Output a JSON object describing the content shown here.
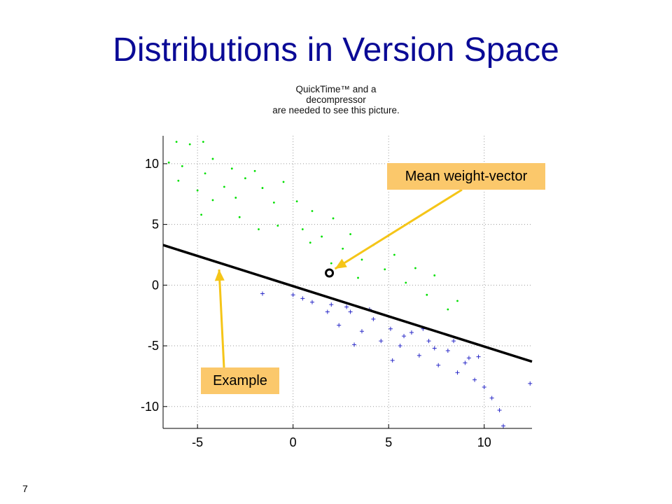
{
  "slide": {
    "title": "Distributions in Version Space",
    "quicktime_placeholder_lines": [
      "QuickTime™ and a",
      "decompressor",
      "are needed to see this picture."
    ],
    "page_number": "7"
  },
  "colors": {
    "title": "#0a0a96",
    "positive_points": "#00e000",
    "negative_points": "#2a2ac8",
    "decision_line": "#000000",
    "callout_fill": "#fbc86b",
    "arrow": "#f5c518"
  },
  "chart_data": {
    "type": "scatter",
    "title": "",
    "xlabel": "",
    "ylabel": "",
    "xlim": [
      -6.8,
      12.5
    ],
    "ylim": [
      -11.8,
      12.3
    ],
    "xticks": [
      -5,
      0,
      5,
      10
    ],
    "yticks": [
      10,
      5,
      0,
      -5,
      -10
    ],
    "grid": true,
    "series": [
      {
        "marker": "dot",
        "color": "#00e000",
        "points": [
          [
            -6.5,
            10.1
          ],
          [
            -6.1,
            11.8
          ],
          [
            -5.4,
            11.6
          ],
          [
            -5.8,
            9.8
          ],
          [
            -4.7,
            11.8
          ],
          [
            -4.6,
            9.2
          ],
          [
            -5.0,
            7.8
          ],
          [
            -6.0,
            8.6
          ],
          [
            -4.2,
            10.4
          ],
          [
            -4.2,
            7.0
          ],
          [
            -3.2,
            9.6
          ],
          [
            -3.6,
            8.1
          ],
          [
            -3.0,
            7.2
          ],
          [
            -2.5,
            8.8
          ],
          [
            -4.8,
            5.8
          ],
          [
            -2.0,
            9.4
          ],
          [
            -1.6,
            8.0
          ],
          [
            -2.8,
            5.6
          ],
          [
            -1.0,
            6.8
          ],
          [
            -0.5,
            8.5
          ],
          [
            -1.8,
            4.6
          ],
          [
            0.2,
            6.9
          ],
          [
            0.5,
            4.6
          ],
          [
            1.0,
            6.1
          ],
          [
            1.5,
            4.0
          ],
          [
            2.1,
            5.5
          ],
          [
            2.6,
            3.0
          ],
          [
            3.0,
            4.2
          ],
          [
            3.6,
            2.1
          ],
          [
            4.2,
            3.3
          ],
          [
            4.8,
            1.3
          ],
          [
            5.3,
            2.5
          ],
          [
            5.9,
            0.2
          ],
          [
            6.4,
            1.4
          ],
          [
            7.0,
            -0.8
          ],
          [
            7.4,
            0.8
          ],
          [
            8.1,
            -2.0
          ],
          [
            8.6,
            -1.3
          ],
          [
            2.0,
            1.8
          ],
          [
            0.9,
            3.5
          ],
          [
            -0.8,
            4.9
          ],
          [
            3.4,
            0.6
          ]
        ]
      },
      {
        "marker": "plus",
        "color": "#2a2ac8",
        "points": [
          [
            -1.6,
            -0.7
          ],
          [
            0.0,
            -0.8
          ],
          [
            1.0,
            -1.4
          ],
          [
            1.8,
            -2.2
          ],
          [
            2.4,
            -3.3
          ],
          [
            3.0,
            -2.2
          ],
          [
            3.6,
            -3.8
          ],
          [
            4.2,
            -2.8
          ],
          [
            4.6,
            -4.6
          ],
          [
            5.1,
            -3.6
          ],
          [
            5.6,
            -5.0
          ],
          [
            6.2,
            -3.9
          ],
          [
            6.6,
            -5.8
          ],
          [
            7.1,
            -4.6
          ],
          [
            7.6,
            -6.6
          ],
          [
            8.1,
            -5.4
          ],
          [
            8.6,
            -7.2
          ],
          [
            9.0,
            -6.4
          ],
          [
            9.5,
            -7.8
          ],
          [
            9.7,
            -5.9
          ],
          [
            10.0,
            -8.4
          ],
          [
            10.4,
            -9.3
          ],
          [
            10.8,
            -10.3
          ],
          [
            11.0,
            -11.6
          ],
          [
            12.4,
            -8.1
          ],
          [
            3.2,
            -4.9
          ],
          [
            5.2,
            -6.2
          ],
          [
            2.8,
            -1.8
          ],
          [
            4.0,
            -2.0
          ],
          [
            6.8,
            -3.6
          ],
          [
            8.4,
            -4.6
          ],
          [
            9.2,
            -6.0
          ],
          [
            5.8,
            -4.2
          ],
          [
            7.4,
            -5.2
          ],
          [
            0.5,
            -1.1
          ],
          [
            2.0,
            -1.6
          ]
        ]
      }
    ],
    "annotations": {
      "decision_line": {
        "from": [
          -6.8,
          3.3
        ],
        "to": [
          12.5,
          -6.3
        ]
      },
      "mean_marker": [
        1.9,
        1.0
      ]
    }
  },
  "callouts": {
    "mean_weight_vector": "Mean weight-vector",
    "example": "Example"
  }
}
